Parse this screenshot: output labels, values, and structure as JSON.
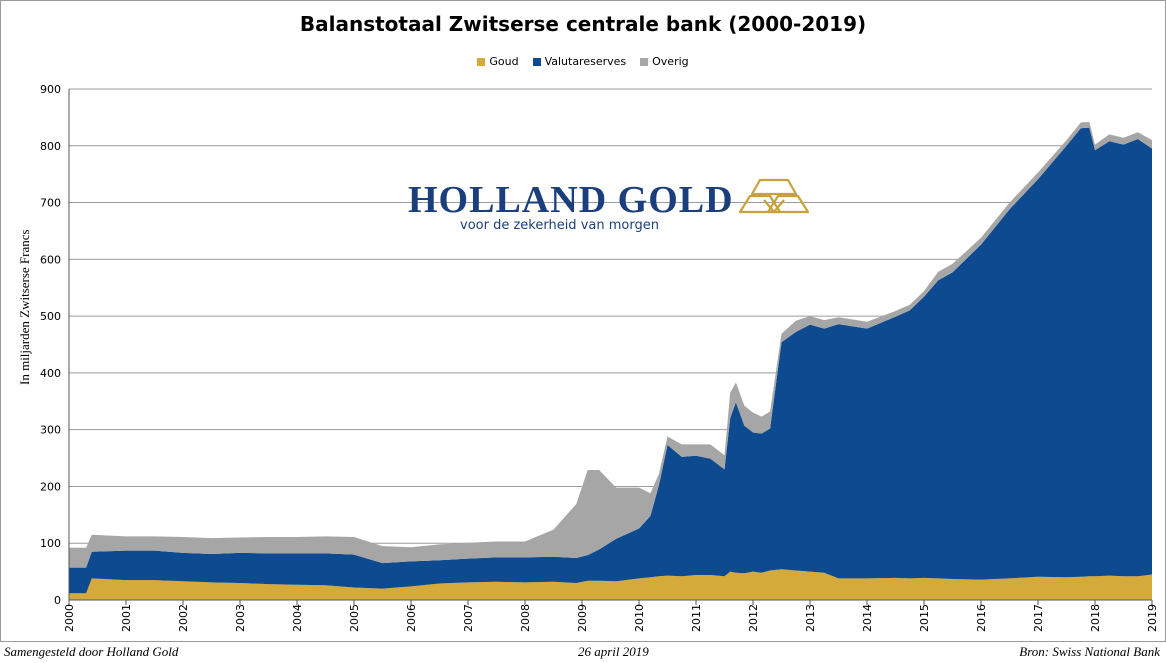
{
  "brand": {
    "name": "HOLLAND GOLD",
    "tagline": "voor de zekerheid van morgen",
    "logo_color": "#c8a13a",
    "name_color": "#1b3f7c"
  },
  "footer": {
    "left": "Samengesteld door Holland Gold",
    "center": "26 april 2019",
    "right": "Bron: Swiss National Bank"
  },
  "chart_data": {
    "type": "area",
    "stacked": true,
    "title": "Balanstotaal Zwitserse centrale bank (2000-2019)",
    "ylabel": "In miljarden Zwitserse Francs",
    "xlabel": "",
    "ylim": [
      0,
      900
    ],
    "yticks": [
      0,
      100,
      200,
      300,
      400,
      500,
      600,
      700,
      800,
      900
    ],
    "xlim": [
      2000,
      2019
    ],
    "xticks": [
      "2000",
      "2001",
      "2002",
      "2003",
      "2004",
      "2005",
      "2006",
      "2007",
      "2008",
      "2009",
      "2010",
      "2011",
      "2012",
      "2013",
      "2014",
      "2015",
      "2016",
      "2017",
      "2018",
      "2019"
    ],
    "grid": "horizontal",
    "legend_position": "top",
    "x": [
      2000,
      2000.3,
      2000.4,
      2001,
      2001.5,
      2002,
      2002.5,
      2003,
      2003.5,
      2004,
      2004.5,
      2005,
      2005.5,
      2006,
      2006.5,
      2007,
      2007.5,
      2008,
      2008.5,
      2008.9,
      2009.1,
      2009.3,
      2009.6,
      2010,
      2010.2,
      2010.35,
      2010.5,
      2010.75,
      2011,
      2011.25,
      2011.5,
      2011.6,
      2011.7,
      2011.85,
      2012,
      2012.15,
      2012.3,
      2012.5,
      2012.75,
      2013,
      2013.25,
      2013.5,
      2014,
      2014.5,
      2014.75,
      2015,
      2015.25,
      2015.5,
      2016,
      2016.5,
      2017,
      2017.5,
      2017.75,
      2017.9,
      2018,
      2018.25,
      2018.5,
      2018.75,
      2019
    ],
    "series": [
      {
        "name": "Goud",
        "color": "#d4aa3a",
        "values": [
          12,
          12,
          38,
          35,
          35,
          33,
          31,
          30,
          28,
          27,
          26,
          22,
          20,
          24,
          29,
          31,
          32,
          31,
          32,
          30,
          34,
          34,
          33,
          38,
          40,
          42,
          43,
          42,
          44,
          44,
          42,
          50,
          48,
          47,
          50,
          48,
          52,
          54,
          52,
          50,
          48,
          38,
          38,
          39,
          38,
          39,
          38,
          37,
          36,
          38,
          41,
          40,
          41,
          42,
          42,
          43,
          42,
          42,
          45
        ]
      },
      {
        "name": "Valutareserves",
        "color": "#0d4a8f",
        "values": [
          45,
          45,
          47,
          52,
          52,
          50,
          50,
          53,
          54,
          55,
          56,
          58,
          45,
          44,
          41,
          42,
          43,
          44,
          44,
          44,
          45,
          55,
          75,
          88,
          108,
          160,
          230,
          210,
          210,
          205,
          188,
          270,
          300,
          260,
          245,
          245,
          250,
          400,
          420,
          435,
          430,
          448,
          440,
          460,
          472,
          495,
          525,
          540,
          590,
          650,
          700,
          760,
          790,
          790,
          750,
          765,
          760,
          770,
          750
        ]
      },
      {
        "name": "Overig",
        "color": "#a6a6a6",
        "values": [
          35,
          35,
          30,
          25,
          25,
          28,
          28,
          27,
          29,
          29,
          30,
          31,
          30,
          25,
          28,
          28,
          28,
          28,
          48,
          95,
          150,
          140,
          90,
          72,
          40,
          20,
          15,
          22,
          20,
          25,
          25,
          45,
          35,
          35,
          35,
          30,
          30,
          15,
          20,
          15,
          15,
          12,
          12,
          10,
          10,
          10,
          15,
          15,
          12,
          12,
          12,
          10,
          10,
          10,
          10,
          12,
          12,
          12,
          15
        ]
      }
    ]
  }
}
